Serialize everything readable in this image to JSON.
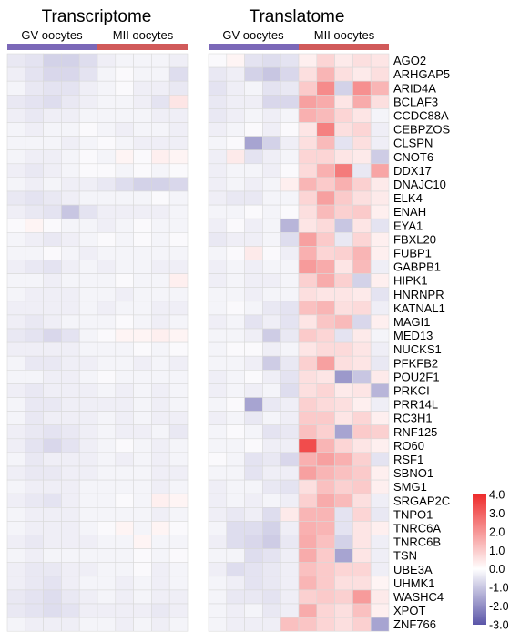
{
  "chart_data": {
    "type": "heatmap",
    "panels": [
      {
        "title": "Transcriptome",
        "groups": [
          {
            "label": "GV oocytes",
            "color": "#7b68b8"
          },
          {
            "label": "MII oocytes",
            "color": "#d15a5a"
          }
        ]
      },
      {
        "title": "Translatome",
        "groups": [
          {
            "label": "GV oocytes",
            "color": "#7b68b8"
          },
          {
            "label": "MII oocytes",
            "color": "#d15a5a"
          }
        ]
      }
    ],
    "genes": [
      "AGO2",
      "ARHGAP5",
      "ARID4A",
      "BCLAF3",
      "CCDC88A",
      "CEBPZOS",
      "CLSPN",
      "CNOT6",
      "DDX17",
      "DNAJC10",
      "ELK4",
      "ENAH",
      "EYA1",
      "FBXL20",
      "FUBP1",
      "GABPB1",
      "HIPK1",
      "HNRNPR",
      "KATNAL1",
      "MAGI1",
      "MED13",
      "NUCKS1",
      "PFKFB2",
      "POU2F1",
      "PRKCI",
      "PRR14L",
      "RC3H1",
      "RNF125",
      "RO60",
      "RSF1",
      "SBNO1",
      "SMG1",
      "SRGAP2C",
      "TNPO1",
      "TNRC6A",
      "TNRC6B",
      "TSN",
      "UBE3A",
      "UHMK1",
      "WASHC4",
      "XPOT",
      "ZNF766"
    ],
    "legend": {
      "ticks": [
        "4.0",
        "3.0",
        "2.0",
        "1.0",
        "0.0",
        "-1.0",
        "-2.0",
        "-3.0"
      ],
      "min": -3.0,
      "max": 4.0,
      "low_color": "#5a55a8",
      "mid_color": "#ffffff",
      "high_color": "#ee2c2c"
    },
    "transcriptome": [
      [
        -0.4,
        -0.5,
        -0.8,
        -0.8,
        -0.6,
        -0.3,
        -0.2,
        -0.2,
        -0.2,
        -0.3
      ],
      [
        -0.3,
        -0.5,
        -0.7,
        -0.7,
        -0.5,
        -0.2,
        -0.1,
        -0.2,
        -0.2,
        -0.6
      ],
      [
        -0.2,
        -0.4,
        -0.5,
        -0.5,
        -0.3,
        -0.2,
        -0.1,
        -0.3,
        -0.3,
        -0.4
      ],
      [
        -0.4,
        -0.5,
        -0.6,
        -0.4,
        -0.3,
        -0.2,
        -0.2,
        -0.3,
        -0.5,
        0.5
      ],
      [
        -0.3,
        -0.4,
        -0.3,
        -0.3,
        -0.2,
        -0.2,
        -0.2,
        -0.2,
        -0.3,
        -0.3
      ],
      [
        -0.2,
        -0.3,
        -0.2,
        -0.2,
        -0.1,
        -0.2,
        -0.3,
        -0.2,
        -0.2,
        -0.3
      ],
      [
        -0.2,
        -0.2,
        -0.2,
        -0.3,
        -0.2,
        -0.1,
        -0.2,
        -0.3,
        -0.3,
        -0.3
      ],
      [
        -0.2,
        -0.3,
        -0.3,
        -0.2,
        -0.1,
        -0.2,
        0.2,
        -0.1,
        0.3,
        0.2
      ],
      [
        -0.3,
        -0.4,
        -0.3,
        -0.2,
        -0.1,
        -0.1,
        -0.2,
        -0.1,
        -0.2,
        -0.1
      ],
      [
        -0.2,
        -0.3,
        -0.2,
        -0.3,
        -0.3,
        -0.4,
        -0.6,
        -0.8,
        -0.8,
        -0.7
      ],
      [
        -0.4,
        -0.5,
        -0.4,
        -0.3,
        -0.2,
        -0.2,
        -0.2,
        -0.2,
        -0.1,
        -0.2
      ],
      [
        -0.3,
        -0.4,
        -0.5,
        -1.0,
        -0.5,
        -0.3,
        -0.3,
        -0.3,
        -0.3,
        -0.2
      ],
      [
        -0.1,
        0.2,
        -0.1,
        -0.2,
        -0.2,
        -0.3,
        -0.2,
        -0.1,
        -0.2,
        -0.2
      ],
      [
        -0.2,
        -0.3,
        -0.4,
        -0.3,
        -0.2,
        -0.1,
        -0.2,
        -0.1,
        -0.2,
        -0.1
      ],
      [
        -0.2,
        -0.2,
        -0.1,
        -0.2,
        -0.3,
        -0.2,
        -0.2,
        -0.2,
        -0.2,
        -0.2
      ],
      [
        -0.3,
        -0.4,
        -0.5,
        -0.3,
        -0.2,
        -0.3,
        -0.2,
        -0.2,
        -0.3,
        -0.3
      ],
      [
        -0.2,
        -0.2,
        -0.3,
        -0.2,
        -0.2,
        -0.2,
        -0.1,
        -0.2,
        -0.2,
        0.3
      ],
      [
        -0.2,
        -0.3,
        -0.3,
        -0.3,
        -0.2,
        -0.2,
        -0.3,
        -0.2,
        -0.2,
        -0.2
      ],
      [
        -0.3,
        -0.3,
        -0.3,
        -0.3,
        -0.2,
        -0.3,
        -0.2,
        -0.2,
        -0.3,
        -0.3
      ],
      [
        -0.3,
        -0.4,
        -0.3,
        -0.2,
        -0.2,
        -0.2,
        -0.1,
        -0.2,
        -0.3,
        -0.2
      ],
      [
        -0.4,
        -0.5,
        -0.7,
        -0.5,
        -0.2,
        -0.1,
        0.2,
        0.2,
        0.3,
        0.2
      ],
      [
        -0.3,
        -0.3,
        -0.3,
        -0.3,
        -0.2,
        -0.2,
        -0.2,
        -0.1,
        -0.2,
        -0.1
      ],
      [
        -0.2,
        -0.4,
        -0.4,
        -0.3,
        -0.3,
        -0.2,
        -0.2,
        -0.3,
        -0.2,
        -0.3
      ],
      [
        -0.2,
        -0.2,
        -0.3,
        -0.3,
        -0.2,
        -0.1,
        -0.2,
        -0.2,
        -0.2,
        -0.2
      ],
      [
        -0.3,
        -0.4,
        -0.3,
        -0.3,
        -0.3,
        -0.2,
        -0.3,
        -0.2,
        -0.3,
        -0.2
      ],
      [
        -0.2,
        -0.4,
        -0.4,
        -0.3,
        -0.3,
        -0.3,
        -0.3,
        -0.2,
        -0.3,
        -0.2
      ],
      [
        -0.2,
        -0.4,
        -0.3,
        -0.3,
        -0.3,
        -0.2,
        -0.3,
        -0.2,
        -0.3,
        -0.3
      ],
      [
        -0.3,
        -0.4,
        -0.5,
        -0.4,
        -0.3,
        -0.2,
        -0.3,
        -0.3,
        -0.2,
        -0.4
      ],
      [
        -0.3,
        -0.5,
        -0.7,
        -0.5,
        -0.3,
        -0.2,
        -0.1,
        -0.2,
        -0.3,
        -0.2
      ],
      [
        -0.2,
        -0.4,
        -0.3,
        -0.3,
        -0.3,
        -0.2,
        -0.3,
        -0.2,
        -0.3,
        -0.2
      ],
      [
        -0.3,
        -0.4,
        -0.4,
        -0.3,
        -0.3,
        -0.2,
        -0.2,
        -0.2,
        -0.3,
        -0.3
      ],
      [
        -0.2,
        -0.3,
        -0.3,
        -0.3,
        -0.2,
        -0.2,
        -0.2,
        -0.2,
        -0.3,
        -0.2
      ],
      [
        -0.3,
        -0.4,
        -0.5,
        -0.3,
        -0.2,
        -0.2,
        -0.1,
        -0.2,
        0.3,
        0.2
      ],
      [
        -0.2,
        -0.3,
        -0.3,
        -0.3,
        -0.2,
        -0.2,
        -0.2,
        -0.2,
        -0.3,
        -0.2
      ],
      [
        -0.2,
        -0.3,
        -0.3,
        -0.3,
        -0.2,
        -0.1,
        0.2,
        -0.2,
        0.2,
        -0.1
      ],
      [
        -0.3,
        -0.4,
        -0.3,
        -0.3,
        -0.3,
        -0.2,
        -0.2,
        0.2,
        -0.2,
        -0.2
      ],
      [
        -0.2,
        -0.3,
        -0.2,
        -0.2,
        -0.2,
        -0.2,
        -0.2,
        -0.1,
        -0.2,
        -0.1
      ],
      [
        -0.3,
        -0.4,
        -0.4,
        -0.3,
        -0.3,
        -0.2,
        -0.2,
        -0.1,
        -0.3,
        -0.2
      ],
      [
        -0.3,
        -0.4,
        -0.5,
        -0.3,
        -0.2,
        -0.2,
        -0.3,
        -0.2,
        -0.3,
        -0.2
      ],
      [
        -0.4,
        -0.5,
        -0.6,
        -0.4,
        -0.3,
        -0.2,
        -0.3,
        -0.2,
        -0.3,
        -0.3
      ],
      [
        -0.4,
        -0.5,
        -0.6,
        -0.5,
        -0.3,
        -0.3,
        -0.3,
        -0.3,
        -0.4,
        -0.3
      ],
      [
        -0.2,
        -0.3,
        -0.3,
        -0.3,
        -0.2,
        -0.2,
        -0.3,
        -0.2,
        -0.3,
        -0.2
      ]
    ],
    "translatome": [
      [
        -0.1,
        0.2,
        -0.5,
        -0.6,
        -0.5,
        0.3,
        0.8,
        0.4,
        0.6,
        0.5
      ],
      [
        -0.4,
        -0.3,
        -0.8,
        -1.0,
        -0.7,
        0.6,
        1.4,
        0.6,
        0.4,
        0.6
      ],
      [
        -0.5,
        -0.3,
        -0.2,
        -0.5,
        -0.4,
        1.0,
        2.2,
        -0.8,
        2.1,
        1.4
      ],
      [
        -0.4,
        -0.3,
        -0.3,
        -0.7,
        -0.7,
        1.8,
        1.6,
        0.5,
        1.6,
        0.6
      ],
      [
        -0.4,
        -0.3,
        -0.2,
        -0.3,
        -0.2,
        1.5,
        1.3,
        0.8,
        0.5,
        -0.2
      ],
      [
        -0.3,
        -0.2,
        -0.1,
        -0.3,
        -0.1,
        0.5,
        2.4,
        0.6,
        0.8,
        -0.3
      ],
      [
        -0.2,
        -0.1,
        -1.6,
        -0.8,
        -0.3,
        0.6,
        1.3,
        -0.5,
        0.6,
        -0.3
      ],
      [
        -0.3,
        0.4,
        -0.5,
        -0.3,
        -0.2,
        0.8,
        0.8,
        0.5,
        0.4,
        -0.9
      ],
      [
        -0.3,
        -0.2,
        -0.2,
        -0.3,
        -0.1,
        0.7,
        1.5,
        2.5,
        -0.4,
        1.7
      ],
      [
        -0.3,
        -0.2,
        -0.3,
        -0.2,
        0.3,
        1.4,
        1.0,
        1.5,
        0.9,
        0.4
      ],
      [
        -0.3,
        -0.4,
        -0.4,
        -0.2,
        -0.2,
        0.8,
        1.8,
        1.0,
        0.6,
        0.4
      ],
      [
        -0.2,
        -0.2,
        -0.1,
        -0.2,
        -0.1,
        0.6,
        1.3,
        0.9,
        1.0,
        0.3
      ],
      [
        -0.3,
        -0.1,
        -0.3,
        -0.2,
        -1.3,
        0.5,
        0.7,
        -1.0,
        0.5,
        -0.5
      ],
      [
        -0.4,
        -0.3,
        -0.3,
        -0.2,
        -0.6,
        1.8,
        1.0,
        -0.4,
        0.8,
        0.3
      ],
      [
        -0.2,
        -0.1,
        0.4,
        -0.1,
        -0.3,
        1.5,
        0.8,
        0.9,
        1.4,
        0.3
      ],
      [
        -0.3,
        -0.2,
        -0.3,
        -0.2,
        -0.2,
        1.9,
        1.6,
        0.5,
        1.3,
        -0.3
      ],
      [
        -0.3,
        -0.2,
        -0.3,
        -0.3,
        -0.2,
        0.9,
        1.6,
        0.9,
        -0.8,
        0.3
      ],
      [
        -0.2,
        -0.2,
        -0.3,
        -0.2,
        -0.2,
        0.6,
        0.5,
        0.5,
        0.4,
        -0.5
      ],
      [
        -0.2,
        -0.1,
        -0.2,
        -0.4,
        -0.5,
        1.2,
        1.4,
        0.6,
        0.7,
        -0.3
      ],
      [
        -0.3,
        -0.2,
        -0.5,
        -0.3,
        -0.5,
        0.5,
        1.1,
        1.3,
        -0.7,
        0.3
      ],
      [
        -0.2,
        -0.2,
        -0.3,
        -0.9,
        -0.4,
        1.0,
        0.8,
        -0.5,
        0.4,
        -0.2
      ],
      [
        -0.2,
        -0.1,
        -0.1,
        -0.3,
        -0.2,
        0.5,
        0.7,
        0.7,
        0.5,
        -0.3
      ],
      [
        -0.2,
        -0.2,
        -0.3,
        -0.9,
        -0.4,
        0.9,
        1.8,
        0.6,
        0.5,
        -0.4
      ],
      [
        -0.3,
        -0.2,
        -0.1,
        -0.3,
        -0.5,
        0.6,
        0.5,
        -1.8,
        -1.0,
        0.4
      ],
      [
        -0.3,
        -0.2,
        -0.3,
        -0.2,
        -0.6,
        0.6,
        0.8,
        0.4,
        0.5,
        -1.3
      ],
      [
        -0.2,
        -0.1,
        -1.6,
        -0.4,
        -0.3,
        0.9,
        0.7,
        0.6,
        0.3,
        -0.3
      ],
      [
        -0.3,
        -0.2,
        -0.4,
        -0.2,
        -0.3,
        1.0,
        1.0,
        0.5,
        0.8,
        0.3
      ],
      [
        -0.2,
        -0.1,
        -0.2,
        -0.5,
        -0.4,
        1.2,
        0.9,
        -1.6,
        1.0,
        0.9
      ],
      [
        -0.2,
        -0.2,
        -0.1,
        -0.3,
        -0.3,
        3.4,
        1.4,
        0.8,
        0.5,
        0.3
      ],
      [
        -0.1,
        -0.2,
        -0.5,
        -0.4,
        -0.7,
        1.5,
        1.8,
        1.5,
        0.9,
        -0.5
      ],
      [
        -0.2,
        -0.2,
        -0.5,
        -0.3,
        -0.3,
        1.8,
        1.4,
        1.2,
        1.0,
        0.3
      ],
      [
        -0.3,
        -0.2,
        -0.2,
        -0.4,
        -0.5,
        0.6,
        1.2,
        0.9,
        1.0,
        0.3
      ],
      [
        -0.3,
        -0.2,
        -0.3,
        -0.2,
        -0.3,
        0.9,
        1.6,
        1.3,
        0.6,
        -0.3
      ],
      [
        -0.3,
        -0.4,
        -0.3,
        -0.6,
        0.4,
        1.4,
        1.4,
        -0.5,
        0.8,
        -0.4
      ],
      [
        -0.2,
        -0.6,
        -0.6,
        -0.8,
        -0.3,
        1.5,
        1.4,
        -0.5,
        0.5,
        0.3
      ],
      [
        -0.3,
        -0.6,
        -0.7,
        -0.9,
        -0.4,
        1.6,
        1.2,
        -0.8,
        0.5,
        -0.3
      ],
      [
        -0.2,
        -0.2,
        -0.6,
        -0.5,
        -0.3,
        1.6,
        1.0,
        -1.6,
        0.5,
        -0.3
      ],
      [
        -0.3,
        -0.6,
        -0.5,
        -0.4,
        -0.3,
        1.2,
        1.0,
        0.8,
        0.8,
        -0.3
      ],
      [
        -0.2,
        -0.3,
        -0.5,
        -0.4,
        -0.3,
        1.4,
        1.0,
        0.6,
        0.6,
        0.2
      ],
      [
        -0.2,
        -0.4,
        -0.4,
        -0.5,
        -0.3,
        0.9,
        1.0,
        0.9,
        1.9,
        0.4
      ],
      [
        -0.2,
        -0.3,
        -0.2,
        -0.4,
        -0.3,
        1.6,
        0.8,
        0.6,
        1.2,
        0.3
      ],
      [
        -0.2,
        -0.3,
        -0.3,
        -0.3,
        1.2,
        1.1,
        0.8,
        0.6,
        0.9,
        -1.6
      ]
    ]
  }
}
